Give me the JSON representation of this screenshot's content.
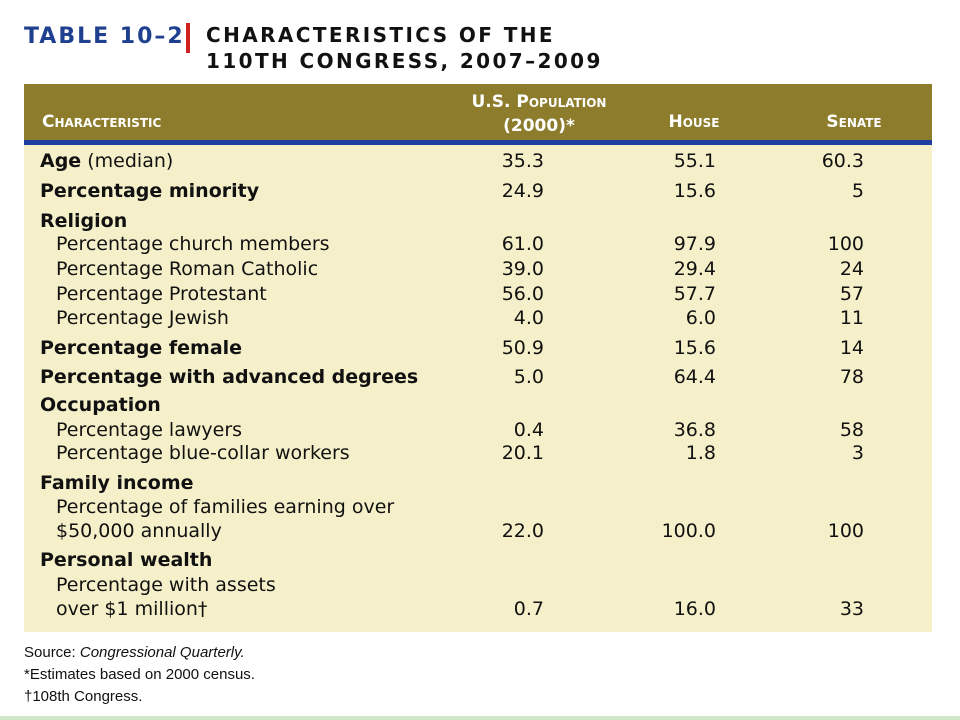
{
  "title": {
    "table_number": "TABLE 10–2",
    "line1": "CHARACTERISTICS OF THE",
    "line2": "110TH CONGRESS, 2007–2009"
  },
  "colors": {
    "title_blue": "#1f3f8f",
    "accent_red": "#d01f1f",
    "header_bg": "#8c7c2c",
    "header_rule": "#1f3fa0",
    "body_bg": "#f5f0c9"
  },
  "header": {
    "characteristic": "Characteristic",
    "population_line1": "U.S. Population",
    "population_line2": "(2000)*",
    "house": "House",
    "senate": "Senate"
  },
  "rows": [
    {
      "label": "Age",
      "label_suffix": " (median)",
      "pop": "35.3",
      "house": "55.1",
      "senate": "60.3"
    },
    {
      "label": "Percentage minority",
      "pop": "24.9",
      "house": "15.6",
      "senate": "5"
    },
    {
      "label": "Religion"
    },
    {
      "label": "Percentage church members",
      "pop": "61.0",
      "house": "97.9",
      "senate": "100"
    },
    {
      "label": "Percentage Roman Catholic",
      "pop": "39.0",
      "house": "29.4",
      "senate": "24"
    },
    {
      "label": "Percentage Protestant",
      "pop": "56.0",
      "house": "57.7",
      "senate": "57"
    },
    {
      "label": "Percentage Jewish",
      "pop": "4.0",
      "house": "6.0",
      "senate": "11"
    },
    {
      "label": "Percentage female",
      "pop": "50.9",
      "house": "15.6",
      "senate": "14"
    },
    {
      "label": "Percentage with advanced degrees",
      "pop": "5.0",
      "house": "64.4",
      "senate": "78"
    },
    {
      "label": "Occupation"
    },
    {
      "label": "Percentage lawyers",
      "pop": "0.4",
      "house": "36.8",
      "senate": "58"
    },
    {
      "label": "Percentage blue-collar workers",
      "pop": "20.1",
      "house": "1.8",
      "senate": "3"
    },
    {
      "label": "Family income"
    },
    {
      "label": "Percentage of families earning over"
    },
    {
      "label": "$50,000 annually",
      "pop": "22.0",
      "house": "100.0",
      "senate": "100"
    },
    {
      "label": "Personal wealth"
    },
    {
      "label": "Percentage with assets"
    },
    {
      "label": "over $1 million†",
      "pop": "0.7",
      "house": "16.0",
      "senate": "33"
    }
  ],
  "notes": {
    "source_prefix": "Source: ",
    "source_name": "Congressional Quarterly.",
    "estimate": "*Estimates based on 2000 census.",
    "dagger": "†108th Congress."
  }
}
